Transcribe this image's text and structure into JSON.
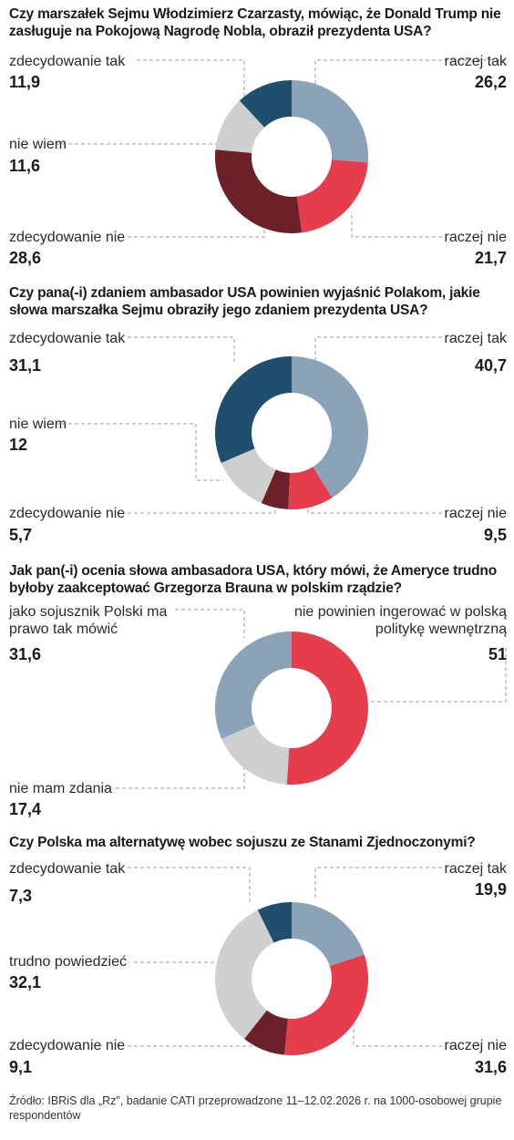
{
  "source": "Źródło: IBRiS dla „Rz\", badanie CATI przeprowadzone 11–12.02.2026 r. na 1000-osobowej grupie respondentów",
  "colors": {
    "dark_blue": "#1f4f6e",
    "light_blue": "#8aa3b8",
    "red": "#e63d4c",
    "dark_red": "#6b2127",
    "gray": "#cfcfd1"
  },
  "chart_data": [
    {
      "type": "pie",
      "title": "Czy marszałek Sejmu Włodzimierz Czarzasty, mówiąc, że Donald Trump nie zasługuje na Pokojową Nagrodę Nobla, obraził prezydenta USA?",
      "categories": [
        "raczej tak",
        "raczej nie",
        "zdecydowanie nie",
        "nie wiem",
        "zdecydowanie tak"
      ],
      "values": [
        26.2,
        21.7,
        28.6,
        11.6,
        11.9
      ],
      "value_labels": [
        "26,2",
        "21,7",
        "28,6",
        "11,6",
        "11,9"
      ],
      "colors": [
        "#8aa3b8",
        "#e63d4c",
        "#6b2127",
        "#cfcfd1",
        "#1f4f6e"
      ]
    },
    {
      "type": "pie",
      "title": "Czy pana(-i) zdaniem ambasador USA powinien wyjaśnić Polakom, jakie słowa marszałka Sejmu obraziły jego zdaniem prezydenta USA?",
      "categories": [
        "raczej tak",
        "raczej nie",
        "zdecydowanie nie",
        "nie wiem",
        "zdecydowanie tak"
      ],
      "values": [
        40.7,
        9.5,
        5.7,
        12,
        31.1
      ],
      "value_labels": [
        "40,7",
        "9,5",
        "5,7",
        "12",
        "31,1"
      ],
      "colors": [
        "#8aa3b8",
        "#e63d4c",
        "#6b2127",
        "#cfcfd1",
        "#1f4f6e"
      ]
    },
    {
      "type": "pie",
      "title": "Jak pan(-i) ocenia słowa ambasadora USA, który mówi, że Ameryce trudno byłoby zaakceptować Grzegorza Brauna w polskim rządzie?",
      "categories": [
        "nie powinien ingerować w polską politykę wewnętrzną",
        "nie mam zdania",
        "jako sojusznik Polski ma prawo tak mówić"
      ],
      "values": [
        51,
        17.4,
        31.6
      ],
      "value_labels": [
        "51",
        "17,4",
        "31,6"
      ],
      "colors": [
        "#e63d4c",
        "#cfcfd1",
        "#8aa3b8"
      ]
    },
    {
      "type": "pie",
      "title": "Czy Polska ma alternatywę wobec sojuszu ze Stanami Zjednoczonymi?",
      "categories": [
        "raczej tak",
        "raczej nie",
        "zdecydowanie nie",
        "trudno powiedzieć",
        "zdecydowanie tak"
      ],
      "values": [
        19.9,
        31.6,
        9.1,
        32.1,
        7.3
      ],
      "value_labels": [
        "19,9",
        "31,6",
        "9,1",
        "32,1",
        "7,3"
      ],
      "colors": [
        "#8aa3b8",
        "#e63d4c",
        "#6b2127",
        "#cfcfd1",
        "#1f4f6e"
      ]
    }
  ]
}
